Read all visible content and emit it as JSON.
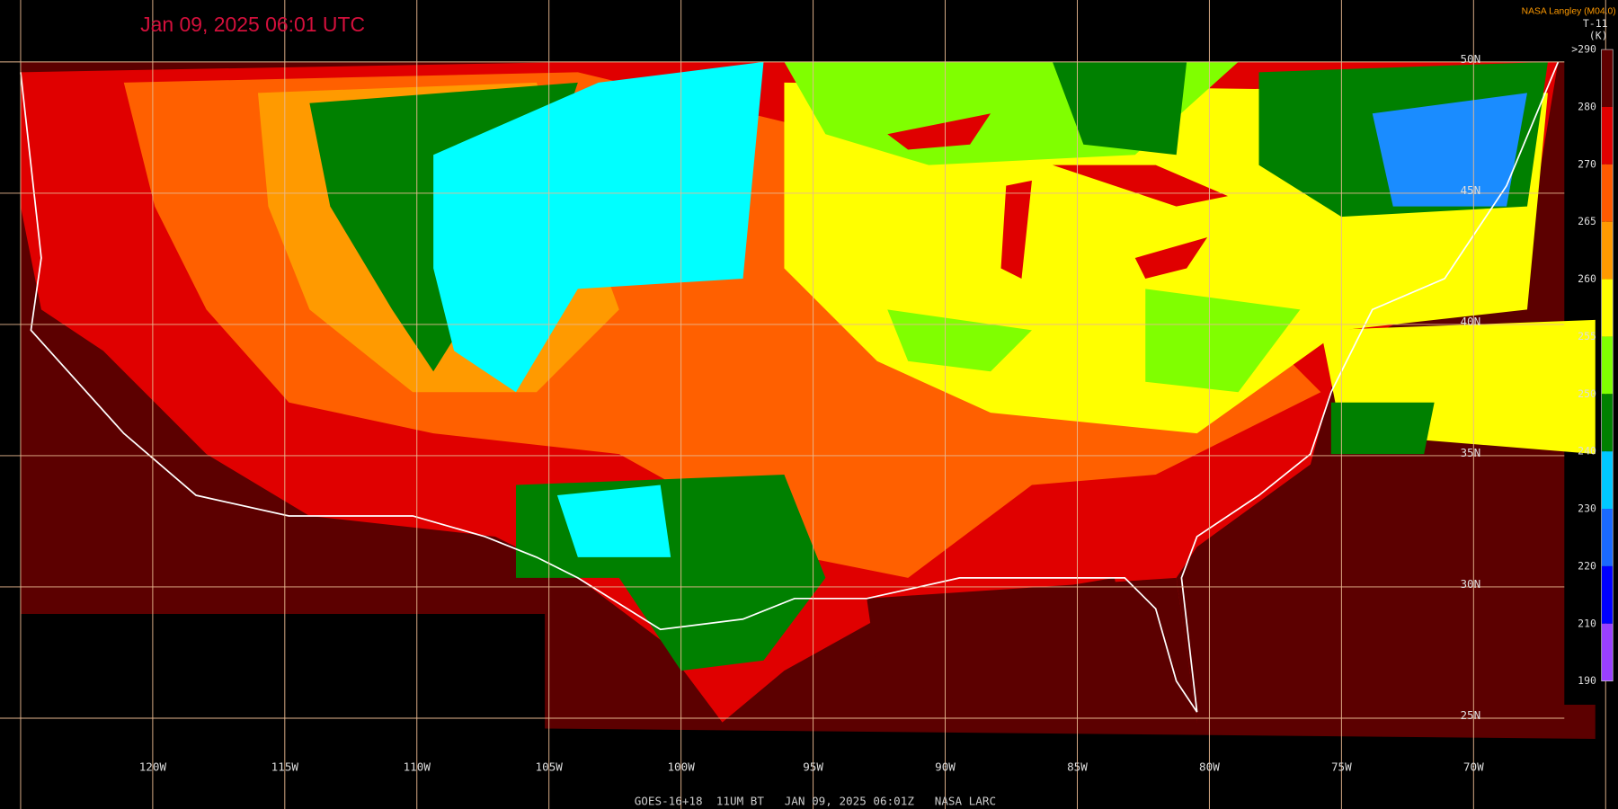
{
  "header": {
    "timestamp": "Jan 09, 2025 06:01 UTC",
    "credit": "NASA Langley (M04.0)"
  },
  "colorbar": {
    "title": "T-11",
    "unit": "(K)",
    "labels": [
      ">290",
      "280",
      "270",
      "265",
      "260",
      "255",
      "250",
      "240",
      "230",
      "220",
      "210",
      "190"
    ],
    "colors": [
      "#600000",
      "#e00000",
      "#ff5a00",
      "#ff9a00",
      "#ffff00",
      "#80ff00",
      "#008000",
      "#00c8ff",
      "#1a6aff",
      "#0000ff",
      "#9a40ff"
    ]
  },
  "grid": {
    "longitudes": [
      "120W",
      "115W",
      "110W",
      "105W",
      "100W",
      "95W",
      "90W",
      "85W",
      "80W",
      "75W",
      "70W"
    ],
    "latitudes": [
      "50N",
      "45N",
      "40N",
      "35N",
      "30N",
      "25N"
    ]
  },
  "footer": "GOES-16+18  11UM BT   JAN 09, 2025 06:01Z   NASA LARC"
}
